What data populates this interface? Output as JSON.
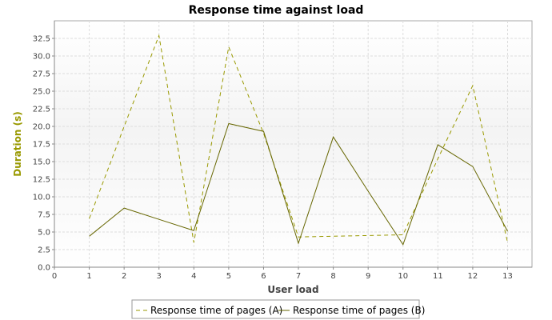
{
  "chart_data": {
    "type": "line",
    "title": "Response time against load",
    "xlabel": "User load",
    "ylabel": "Duration (s)",
    "xlim": [
      0,
      13.7
    ],
    "ylim": [
      0,
      35
    ],
    "x_ticks": [
      0,
      1,
      2,
      3,
      4,
      5,
      6,
      7,
      8,
      9,
      10,
      11,
      12,
      13
    ],
    "y_ticks": [
      0.0,
      2.5,
      5.0,
      7.5,
      10.0,
      12.5,
      15.0,
      17.5,
      20.0,
      22.5,
      25.0,
      27.5,
      30.0,
      32.5
    ],
    "grid": true,
    "legend_position": "bottom",
    "series": [
      {
        "name": "Response time of pages (A)",
        "color": "#999900",
        "dashed": true,
        "x": [
          1,
          2,
          3,
          4,
          5,
          6,
          7,
          8,
          9,
          10,
          11,
          12,
          13
        ],
        "y": [
          6.9,
          20.0,
          32.9,
          3.5,
          31.3,
          19.0,
          4.3,
          4.4,
          4.5,
          4.6,
          15.4,
          25.8,
          3.5
        ]
      },
      {
        "name": "Response time of pages (B)",
        "color": "#666600",
        "dashed": false,
        "x": [
          1,
          2,
          3,
          4,
          5,
          6,
          7,
          8,
          9,
          10,
          11,
          12,
          13
        ],
        "y": [
          4.4,
          8.4,
          6.8,
          5.2,
          20.4,
          19.3,
          3.4,
          18.5,
          10.8,
          3.2,
          17.4,
          14.3,
          5.1
        ]
      }
    ],
    "ylabel_color": "#999900"
  }
}
